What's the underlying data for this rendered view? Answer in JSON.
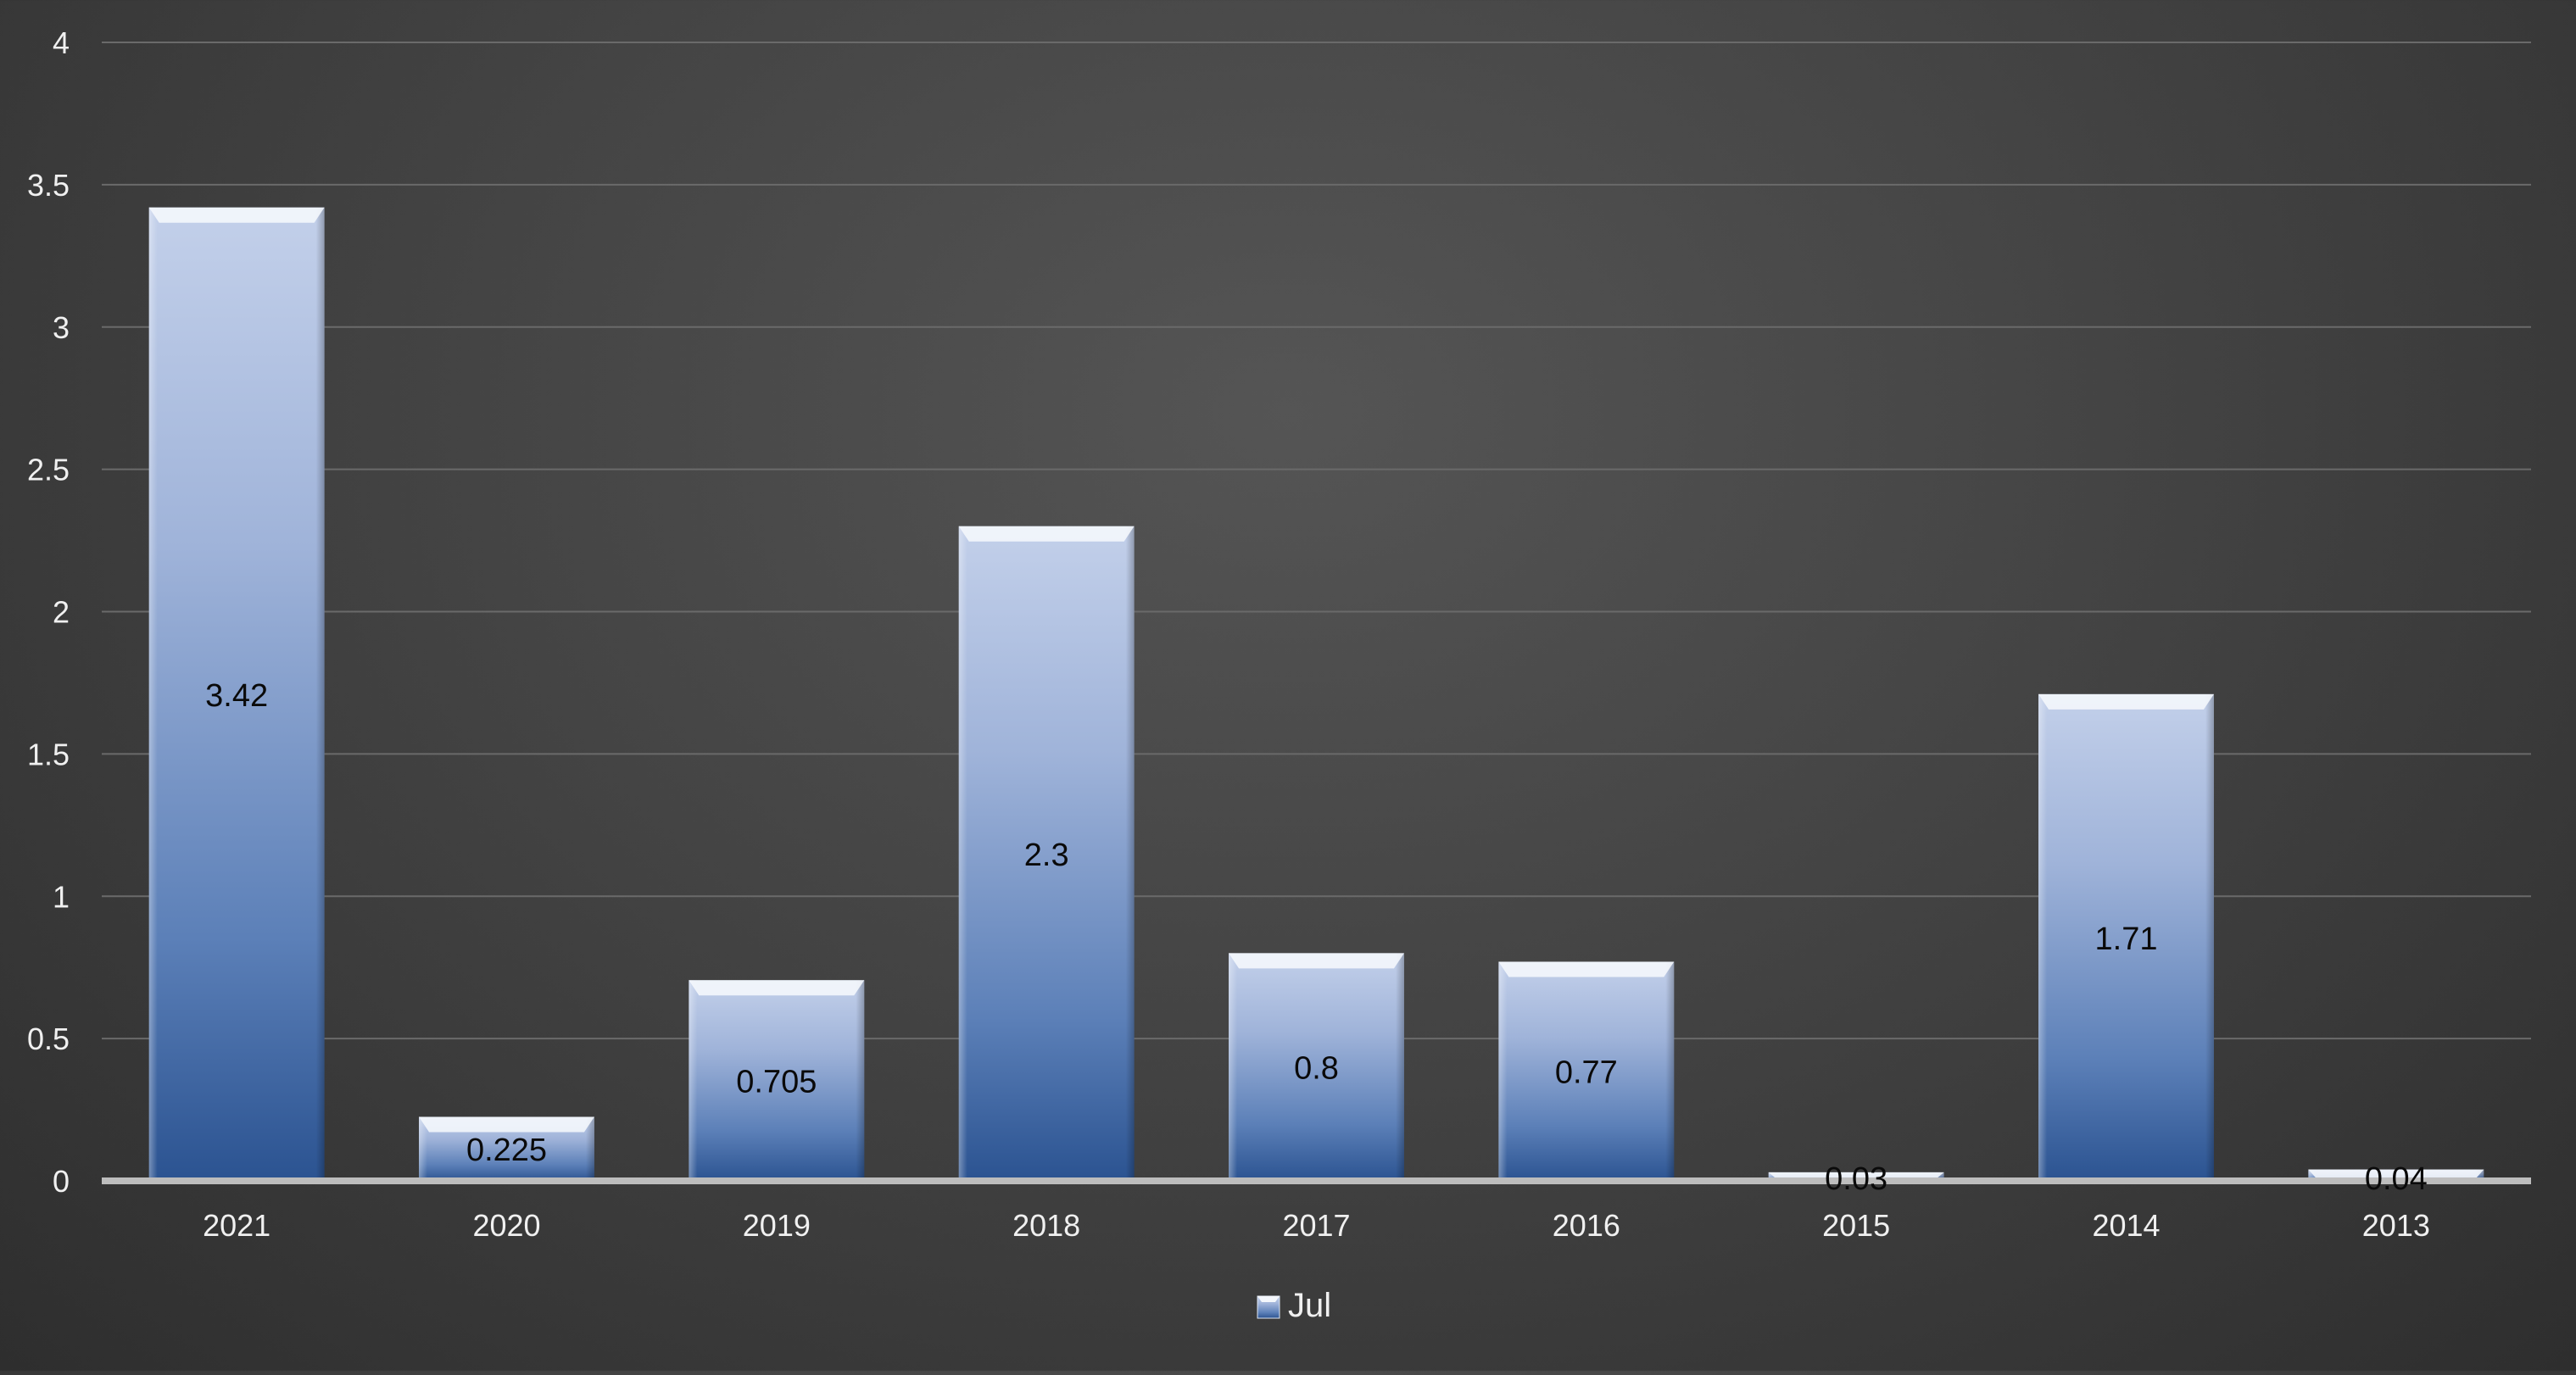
{
  "chart_data": {
    "type": "bar",
    "title": "",
    "xlabel": "",
    "ylabel": "",
    "categories": [
      "2021",
      "2020",
      "2019",
      "2018",
      "2017",
      "2016",
      "2015",
      "2014",
      "2013"
    ],
    "series": [
      {
        "name": "Jul",
        "values": [
          3.42,
          0.225,
          0.705,
          2.3,
          0.8,
          0.77,
          0.03,
          1.71,
          0.04
        ],
        "data_labels": [
          "3.42",
          "0.225",
          "0.705",
          "2.3",
          "0.8",
          "0.77",
          "0.03",
          "1.71",
          "0.04"
        ]
      }
    ],
    "ylim": [
      0,
      4
    ],
    "y_ticks": [
      "0",
      "0.5",
      "1",
      "1.5",
      "2",
      "2.5",
      "3",
      "3.5",
      "4"
    ],
    "grid": true,
    "legend": {
      "position": "bottom",
      "entries": [
        "Jul"
      ]
    }
  },
  "colors": {
    "bar_top": "#c0cde8",
    "bar_bottom": "#2d5590",
    "gridline": "#6a6a6a",
    "baseline": "#bdbdbd",
    "tick_label": "#f0f0f0",
    "data_label": "#0a0a0a"
  }
}
